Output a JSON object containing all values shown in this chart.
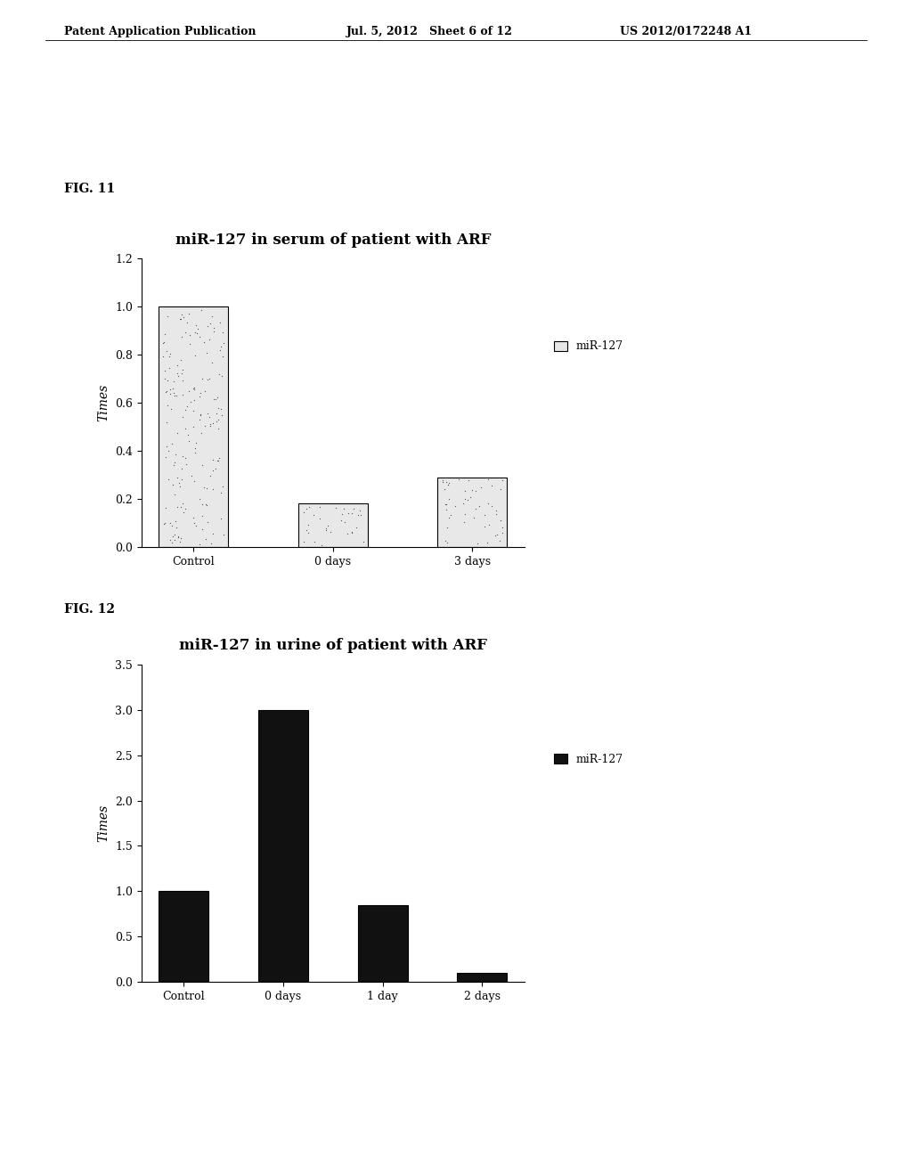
{
  "header_left": "Patent Application Publication",
  "header_mid": "Jul. 5, 2012   Sheet 6 of 12",
  "header_right": "US 2012/0172248 A1",
  "fig11_label": "FIG. 11",
  "fig11_title": "miR-127 in serum of patient with ARF",
  "fig11_categories": [
    "Control",
    "0 days",
    "3 days"
  ],
  "fig11_values": [
    1.0,
    0.18,
    0.29
  ],
  "fig11_ylabel": "Times",
  "fig11_ylim": [
    0,
    1.2
  ],
  "fig11_yticks": [
    0,
    0.2,
    0.4,
    0.6,
    0.8,
    1.0,
    1.2
  ],
  "fig11_legend": "miR-127",
  "fig12_label": "FIG. 12",
  "fig12_title": "miR-127 in urine of patient with ARF",
  "fig12_categories": [
    "Control",
    "0 days",
    "1 day",
    "2 days"
  ],
  "fig12_values": [
    1.0,
    3.0,
    0.85,
    0.1
  ],
  "fig12_ylabel": "Times",
  "fig12_ylim": [
    0,
    3.5
  ],
  "fig12_yticks": [
    0,
    0.5,
    1.0,
    1.5,
    2.0,
    2.5,
    3.0,
    3.5
  ],
  "fig12_legend": "miR-127",
  "bg_color": "#ffffff",
  "bar_color_fig12": "#111111",
  "bar_edge_color": "#000000",
  "title_fontsize": 12,
  "label_fontsize": 10,
  "tick_fontsize": 9,
  "header_fontsize": 9,
  "fig_label_fontsize": 10
}
